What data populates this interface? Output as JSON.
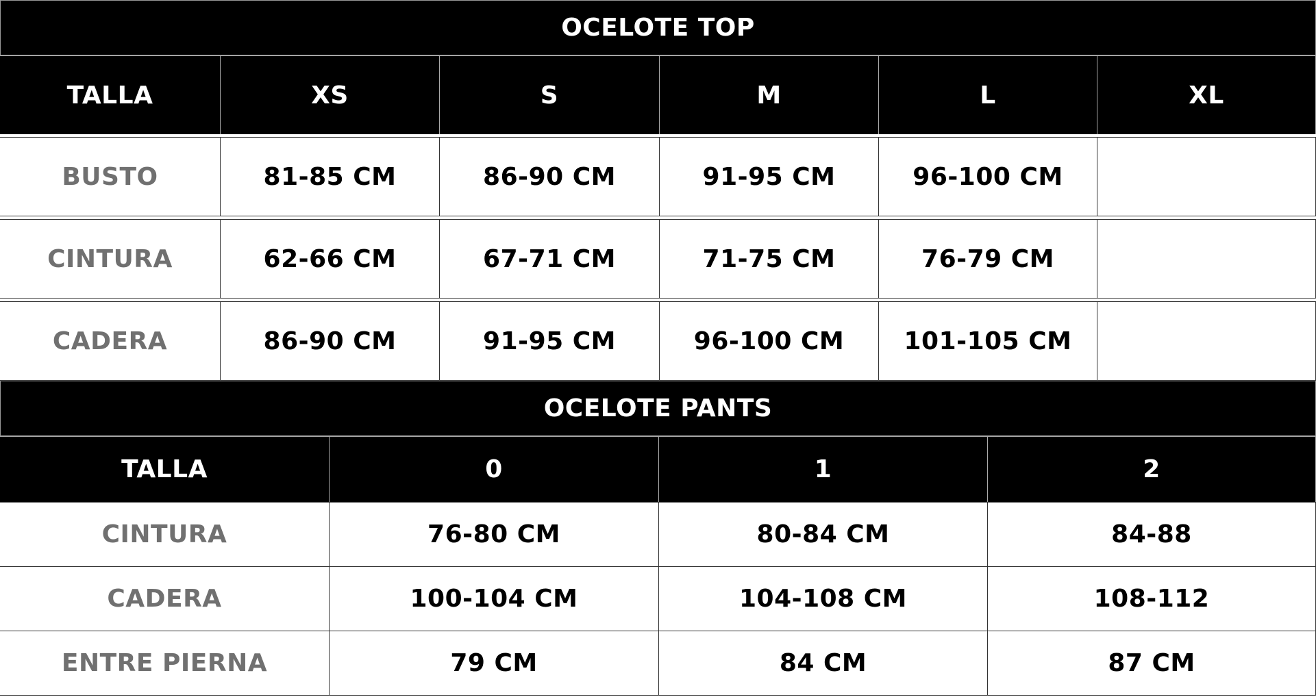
{
  "top": {
    "title": "OCELOTE TOP",
    "header": [
      "TALLA",
      "XS",
      "S",
      "M",
      "L",
      "XL"
    ],
    "rows": [
      {
        "label": "BUSTO",
        "values": [
          "81-85 CM",
          "86-90 CM",
          "91-95 CM",
          "96-100 CM",
          ""
        ]
      },
      {
        "label": "CINTURA",
        "values": [
          "62-66 CM",
          "67-71 CM",
          "71-75 CM",
          "76-79 CM",
          ""
        ]
      },
      {
        "label": "CADERA",
        "values": [
          "86-90 CM",
          "91-95 CM",
          "96-100 CM",
          "101-105 CM",
          ""
        ]
      }
    ]
  },
  "pants": {
    "title": "OCELOTE PANTS",
    "header": [
      "TALLA",
      "0",
      "1",
      "2"
    ],
    "rows": [
      {
        "label": "CINTURA",
        "values": [
          "76-80 CM",
          "80-84 CM",
          "84-88"
        ]
      },
      {
        "label": "CADERA",
        "values": [
          "100-104 CM",
          "104-108 CM",
          "108-112"
        ]
      },
      {
        "label": "ENTRE PIERNA",
        "values": [
          "79 CM",
          "84 CM",
          "87 CM"
        ]
      }
    ]
  },
  "colors": {
    "header_bg": "#000000",
    "label_text": "#707070",
    "value_text": "#000000"
  }
}
